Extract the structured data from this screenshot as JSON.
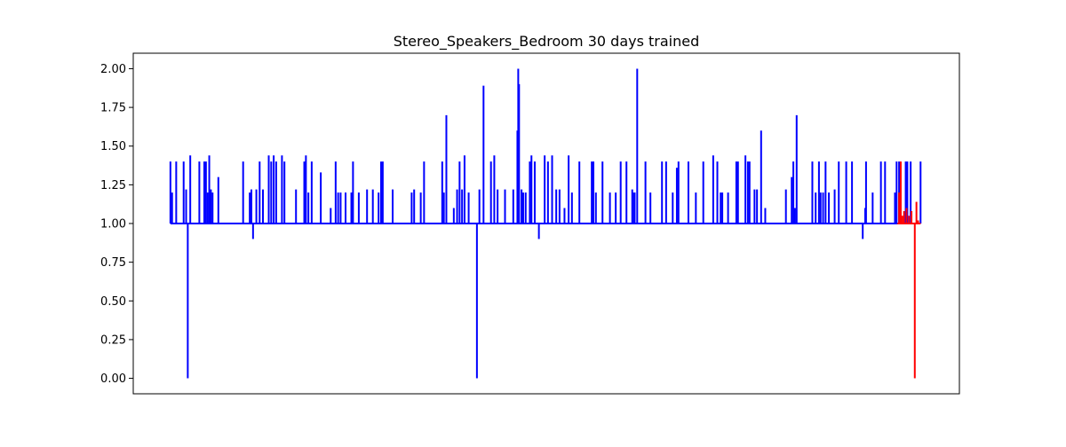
{
  "chart_data": {
    "type": "line",
    "title": "Stereo_Speakers_Bedroom 30 days trained",
    "xlabel": "",
    "ylabel": "",
    "ylim": [
      -0.1,
      2.1
    ],
    "xlim": [
      0,
      1000
    ],
    "yticks": [
      0.0,
      0.25,
      0.5,
      0.75,
      1.0,
      1.25,
      1.5,
      1.75,
      2.0
    ],
    "ytick_labels": [
      "0.00",
      "0.25",
      "0.50",
      "0.75",
      "1.00",
      "1.25",
      "1.50",
      "1.75",
      "2.00"
    ],
    "x_tick_labels_visible": false,
    "grid": false,
    "legend": "none",
    "baseline": 1.0,
    "series": [
      {
        "color": "#0000ff",
        "x_range": [
          45,
          953
        ],
        "spikes": [
          [
            45,
            1.4
          ],
          [
            47,
            1.2
          ],
          [
            52,
            1.4
          ],
          [
            61,
            1.4
          ],
          [
            64,
            1.22
          ],
          [
            66,
            0.0
          ],
          [
            69,
            1.44
          ],
          [
            80,
            1.4
          ],
          [
            86,
            1.4
          ],
          [
            88,
            1.4
          ],
          [
            90,
            1.2
          ],
          [
            92,
            1.44
          ],
          [
            94,
            1.22
          ],
          [
            96,
            1.2
          ],
          [
            103,
            1.3
          ],
          [
            133,
            1.4
          ],
          [
            141,
            1.2
          ],
          [
            143,
            1.22
          ],
          [
            145,
            0.9
          ],
          [
            149,
            1.22
          ],
          [
            153,
            1.4
          ],
          [
            157,
            1.22
          ],
          [
            164,
            1.44
          ],
          [
            167,
            1.4
          ],
          [
            170,
            1.44
          ],
          [
            173,
            1.4
          ],
          [
            180,
            1.44
          ],
          [
            183,
            1.4
          ],
          [
            197,
            1.22
          ],
          [
            207,
            1.4
          ],
          [
            209,
            1.44
          ],
          [
            212,
            1.2
          ],
          [
            216,
            1.4
          ],
          [
            227,
            1.33
          ],
          [
            239,
            1.1
          ],
          [
            245,
            1.4
          ],
          [
            248,
            1.2
          ],
          [
            251,
            1.2
          ],
          [
            257,
            1.2
          ],
          [
            264,
            1.2
          ],
          [
            266,
            1.4
          ],
          [
            273,
            1.2
          ],
          [
            283,
            1.22
          ],
          [
            290,
            1.22
          ],
          [
            297,
            1.2
          ],
          [
            300,
            1.4
          ],
          [
            302,
            1.4
          ],
          [
            314,
            1.22
          ],
          [
            337,
            1.2
          ],
          [
            340,
            1.22
          ],
          [
            348,
            1.2
          ],
          [
            352,
            1.4
          ],
          [
            374,
            1.4
          ],
          [
            376,
            1.2
          ],
          [
            379,
            1.7
          ],
          [
            388,
            1.1
          ],
          [
            392,
            1.22
          ],
          [
            395,
            1.4
          ],
          [
            398,
            1.22
          ],
          [
            401,
            1.44
          ],
          [
            406,
            1.2
          ],
          [
            416,
            0.0
          ],
          [
            419,
            1.22
          ],
          [
            424,
            1.89
          ],
          [
            433,
            1.4
          ],
          [
            437,
            1.44
          ],
          [
            441,
            1.22
          ],
          [
            450,
            1.22
          ],
          [
            460,
            1.22
          ],
          [
            465,
            1.6
          ],
          [
            466,
            2.0
          ],
          [
            467,
            1.9
          ],
          [
            470,
            1.22
          ],
          [
            472,
            1.2
          ],
          [
            475,
            1.2
          ],
          [
            480,
            1.4
          ],
          [
            482,
            1.44
          ],
          [
            486,
            1.4
          ],
          [
            491,
            0.9
          ],
          [
            498,
            1.44
          ],
          [
            502,
            1.4
          ],
          [
            507,
            1.44
          ],
          [
            512,
            1.22
          ],
          [
            516,
            1.22
          ],
          [
            522,
            1.1
          ],
          [
            527,
            1.44
          ],
          [
            531,
            1.2
          ],
          [
            540,
            1.4
          ],
          [
            555,
            1.4
          ],
          [
            557,
            1.4
          ],
          [
            560,
            1.2
          ],
          [
            568,
            1.4
          ],
          [
            577,
            1.2
          ],
          [
            584,
            1.2
          ],
          [
            590,
            1.4
          ],
          [
            597,
            1.4
          ],
          [
            604,
            1.22
          ],
          [
            606,
            1.2
          ],
          [
            607,
            1.2
          ],
          [
            610,
            2.0
          ],
          [
            620,
            1.4
          ],
          [
            626,
            1.2
          ],
          [
            640,
            1.4
          ],
          [
            645,
            1.4
          ],
          [
            653,
            1.2
          ],
          [
            658,
            1.36
          ],
          [
            660,
            1.4
          ],
          [
            672,
            1.4
          ],
          [
            681,
            1.2
          ],
          [
            690,
            1.4
          ],
          [
            702,
            1.44
          ],
          [
            707,
            1.4
          ],
          [
            711,
            1.2
          ],
          [
            713,
            1.2
          ],
          [
            720,
            1.2
          ],
          [
            730,
            1.4
          ],
          [
            732,
            1.4
          ],
          [
            741,
            1.44
          ],
          [
            744,
            1.4
          ],
          [
            746,
            1.4
          ],
          [
            752,
            1.22
          ],
          [
            755,
            1.22
          ],
          [
            760,
            1.6
          ],
          [
            765,
            1.1
          ],
          [
            790,
            1.22
          ],
          [
            797,
            1.3
          ],
          [
            799,
            1.4
          ],
          [
            801,
            1.1
          ],
          [
            803,
            1.7
          ],
          [
            822,
            1.4
          ],
          [
            826,
            1.2
          ],
          [
            830,
            1.4
          ],
          [
            832,
            1.2
          ],
          [
            835,
            1.2
          ],
          [
            838,
            1.4
          ],
          [
            842,
            1.2
          ],
          [
            849,
            1.22
          ],
          [
            854,
            1.4
          ],
          [
            863,
            1.4
          ],
          [
            870,
            1.4
          ],
          [
            883,
            0.9
          ],
          [
            886,
            1.1
          ],
          [
            887,
            1.4
          ],
          [
            895,
            1.2
          ],
          [
            905,
            1.4
          ],
          [
            910,
            1.4
          ],
          [
            922,
            1.2
          ],
          [
            924,
            1.4
          ],
          [
            927,
            1.4
          ],
          [
            935,
            1.4
          ],
          [
            937,
            1.4
          ],
          [
            941,
            1.4
          ],
          [
            953,
            1.4
          ]
        ]
      },
      {
        "color": "#ff0000",
        "x_range": [
          925,
          953
        ],
        "spikes": [
          [
            927,
            1.2
          ],
          [
            929,
            1.4
          ],
          [
            931,
            1.05
          ],
          [
            933,
            1.08
          ],
          [
            936,
            1.1
          ],
          [
            939,
            1.05
          ],
          [
            942,
            1.08
          ],
          [
            946,
            0.0
          ],
          [
            948,
            1.14
          ],
          [
            950,
            1.02
          ]
        ]
      }
    ]
  }
}
